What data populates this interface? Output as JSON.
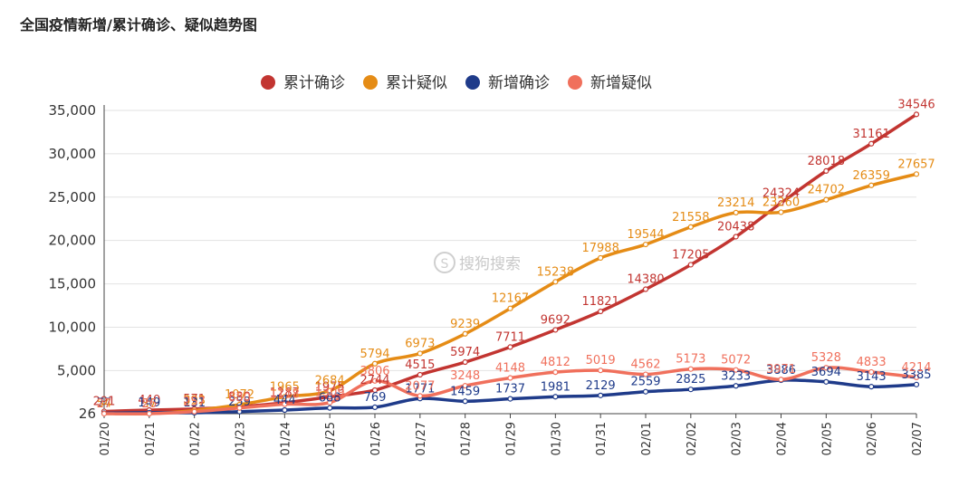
{
  "title": "全国疫情新增/累计确诊、疑似趋势图",
  "watermark": "搜狗搜索",
  "chart_data": {
    "type": "line",
    "categories": [
      "01/20",
      "01/21",
      "01/22",
      "01/23",
      "01/24",
      "01/25",
      "01/26",
      "01/27",
      "01/28",
      "01/29",
      "01/30",
      "01/31",
      "02/01",
      "02/02",
      "02/03",
      "02/04",
      "02/05",
      "02/06",
      "02/07"
    ],
    "ylim": [
      26,
      35000
    ],
    "yticks": [
      26,
      5000,
      10000,
      15000,
      20000,
      25000,
      30000,
      35000
    ],
    "ytick_labels": [
      "26",
      "5,000",
      "10,000",
      "15,000",
      "20,000",
      "25,000",
      "30,000",
      "35,000"
    ],
    "grid": true,
    "legend_position": "top-center",
    "series": [
      {
        "name": "累计确诊",
        "color": "#c23531",
        "values": [
          291,
          440,
          571,
          830,
          1287,
          1975,
          2744,
          4515,
          5974,
          7711,
          9692,
          11821,
          14380,
          17205,
          20438,
          24324,
          28018,
          31161,
          34546
        ]
      },
      {
        "name": "累计疑似",
        "color": "#e58c16",
        "values": [
          54,
          37,
          393,
          1072,
          1965,
          2684,
          5794,
          6973,
          9239,
          12167,
          15238,
          17988,
          19544,
          21558,
          23214,
          23260,
          24702,
          26359,
          27657
        ]
      },
      {
        "name": "新增确诊",
        "color": "#1f3b8a",
        "values": [
          77,
          149,
          131,
          259,
          444,
          688,
          769,
          1771,
          1459,
          1737,
          1981,
          2129,
          2559,
          2825,
          3233,
          3886,
          3694,
          3143,
          3385
        ]
      },
      {
        "name": "新增疑似",
        "color": "#f0705c",
        "values": [
          27,
          26,
          257,
          680,
          1118,
          1309,
          3806,
          2077,
          3248,
          4148,
          4812,
          5019,
          4562,
          5173,
          5072,
          3971,
          5328,
          4833,
          4214
        ]
      }
    ]
  }
}
